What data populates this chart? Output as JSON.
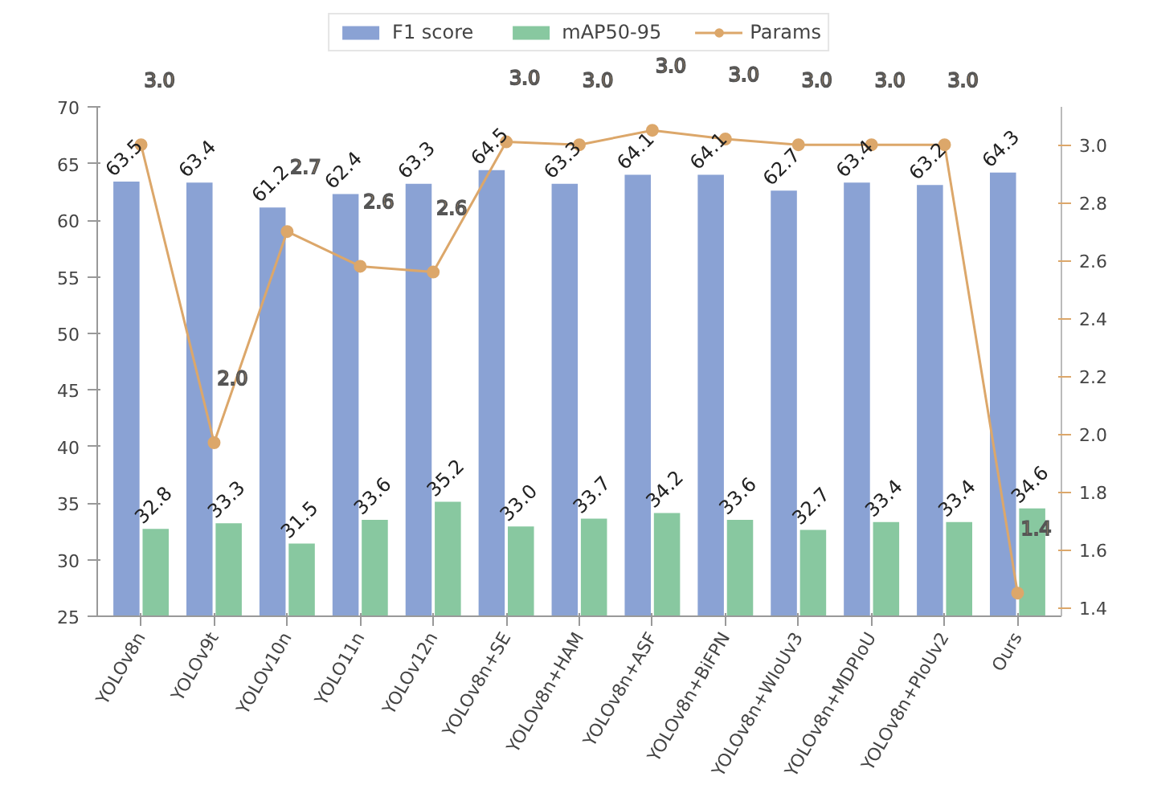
{
  "chart_data": {
    "type": "bar",
    "categories": [
      "YOLOv8n",
      "YOLOv9t",
      "YOLOv10n",
      "YOLO11n",
      "YOLOv12n",
      "YOLOv8n+SE",
      "YOLOv8n+HAM",
      "YOLOv8n+ASF",
      "YOLOv8n+BiFPN",
      "YOLOv8n+WIoUv3",
      "YOLOv8n+MDPIoU",
      "YOLOv8n+PIoUv2",
      "Ours"
    ],
    "series": [
      {
        "name": "F1 score",
        "color": "#8aa2d4",
        "values": [
          63.5,
          63.4,
          61.2,
          62.4,
          63.3,
          64.5,
          63.3,
          64.1,
          64.1,
          62.7,
          63.4,
          63.2,
          64.3
        ],
        "value_labels": [
          "63.5",
          "63.4",
          "61.2",
          "62.4",
          "63.3",
          "64.5",
          "63.3",
          "64.1",
          "64.1",
          "62.7",
          "63.4",
          "63.2",
          "64.3"
        ]
      },
      {
        "name": "mAP50-95",
        "color": "#88c8a0",
        "values": [
          32.8,
          33.3,
          31.5,
          33.6,
          35.2,
          33.0,
          33.7,
          34.2,
          33.6,
          32.7,
          33.4,
          33.4,
          34.6
        ],
        "value_labels": [
          "32.8",
          "33.3",
          "31.5",
          "33.6",
          "35.2",
          "33.0",
          "33.7",
          "34.2",
          "33.6",
          "32.7",
          "33.4",
          "33.4",
          "34.6"
        ]
      },
      {
        "name": "Params",
        "type": "line",
        "axis": "y2",
        "marker": "circle",
        "color": "#dca76a",
        "values": [
          3.0,
          1.97,
          2.7,
          2.58,
          2.56,
          3.01,
          3.0,
          3.05,
          3.02,
          3.0,
          3.0,
          3.0,
          1.45
        ],
        "value_labels": [
          "3.0",
          "2.0",
          "2.7",
          "2.6",
          "2.6",
          "3.0",
          "3.0",
          "3.0",
          "3.0",
          "3.0",
          "3.0",
          "3.0",
          "1.4"
        ]
      }
    ],
    "ylim": [
      25,
      70
    ],
    "yticks": [
      25,
      30,
      35,
      40,
      45,
      50,
      55,
      60,
      65,
      70
    ],
    "y2lim": [
      1.37,
      3.13
    ],
    "y2ticks": [
      1.4,
      1.6,
      1.8,
      {
        "value": 2.0,
        "label": "2.0"
      },
      2.2,
      2.4,
      2.6,
      2.8,
      {
        "value": 3.0,
        "label": "3.0"
      }
    ],
    "grid": false,
    "legend": "top"
  }
}
